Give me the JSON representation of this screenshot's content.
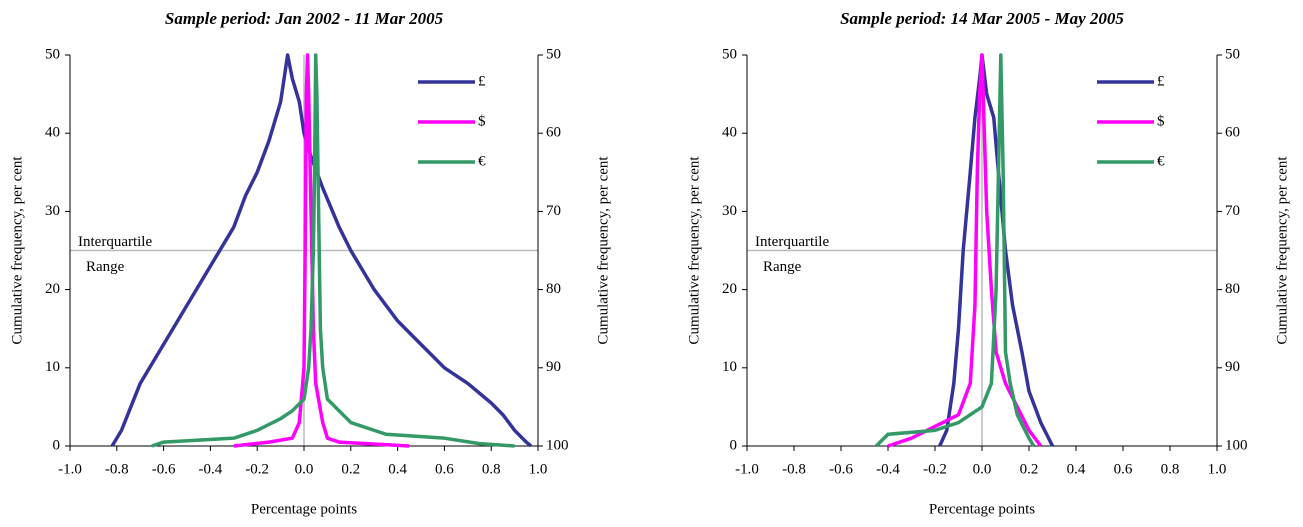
{
  "chart_data": [
    {
      "type": "line",
      "title": "Sample period: Jan 2002 - 11 Mar 2005",
      "xlabel": "Percentage points",
      "ylabel": "Cumulative frequency, per cent",
      "y2label": "Cumulative frequency, per cent",
      "xlim": [
        -1,
        1
      ],
      "xticks": [
        {
          "value": -1,
          "label": "-1.0"
        },
        -0.8,
        -0.6,
        -0.4,
        -0.2,
        {
          "value": 0,
          "label": "0.0"
        },
        0.2,
        0.4,
        0.6,
        0.8,
        {
          "value": 1,
          "label": "1.0"
        }
      ],
      "ylim": [
        0,
        50
      ],
      "yticks": [
        0,
        10,
        20,
        30,
        40,
        50
      ],
      "y2lim": [
        100,
        50
      ],
      "y2ticks": [
        100,
        90,
        80,
        70,
        60,
        50
      ],
      "hline": 25,
      "vline": 0,
      "annotation": [
        "Interquartile",
        "Range"
      ],
      "legend": "top-right",
      "series": [
        {
          "name": "£",
          "color": "#333399",
          "x": [
            -0.82,
            -0.78,
            -0.7,
            -0.6,
            -0.5,
            -0.4,
            -0.3,
            -0.25,
            -0.2,
            -0.15,
            -0.1,
            -0.08,
            -0.07,
            -0.05,
            -0.02,
            0.0,
            0.03,
            0.08,
            0.15,
            0.2,
            0.3,
            0.4,
            0.5,
            0.6,
            0.7,
            0.8,
            0.85,
            0.9,
            0.95,
            0.97
          ],
          "values": [
            0,
            2,
            8,
            13,
            18,
            23,
            28,
            32,
            35,
            39,
            44,
            48,
            50,
            47,
            44,
            40,
            37,
            33,
            28,
            25,
            20,
            16,
            13,
            10,
            8,
            5.5,
            4,
            2,
            0.5,
            0
          ]
        },
        {
          "name": "$",
          "color": "#ff00ff",
          "x": [
            -0.3,
            -0.15,
            -0.05,
            -0.02,
            0.0,
            0.005,
            0.01,
            0.015,
            0.02,
            0.03,
            0.04,
            0.05,
            0.08,
            0.1,
            0.15,
            0.45
          ],
          "values": [
            0,
            0.5,
            1,
            3,
            10,
            25,
            45,
            50,
            45,
            30,
            15,
            8,
            3,
            1,
            0.5,
            0
          ]
        },
        {
          "name": "€",
          "color": "#339966",
          "x": [
            -0.65,
            -0.6,
            -0.3,
            -0.2,
            -0.1,
            -0.05,
            0.0,
            0.02,
            0.03,
            0.04,
            0.045,
            0.05,
            0.055,
            0.06,
            0.065,
            0.07,
            0.08,
            0.1,
            0.2,
            0.35,
            0.6,
            0.75,
            0.9
          ],
          "values": [
            0,
            0.5,
            1,
            2,
            3.5,
            4.5,
            6,
            10,
            15,
            25,
            35,
            50,
            45,
            35,
            25,
            15,
            10,
            6,
            3,
            1.5,
            1,
            0.3,
            0
          ]
        }
      ]
    },
    {
      "type": "line",
      "title": "Sample period: 14 Mar 2005 - May 2005",
      "xlabel": "Percentage points",
      "ylabel": "Cumulative frequency, per cent",
      "y2label": "Cumulative frequency, per cent",
      "xlim": [
        -1,
        1
      ],
      "xticks": [
        {
          "value": -1,
          "label": "-1.0"
        },
        -0.8,
        -0.6,
        -0.4,
        -0.2,
        {
          "value": 0,
          "label": "0.0"
        },
        0.2,
        0.4,
        0.6,
        0.8,
        {
          "value": 1,
          "label": "1.0"
        }
      ],
      "ylim": [
        0,
        50
      ],
      "yticks": [
        0,
        10,
        20,
        30,
        40,
        50
      ],
      "y2lim": [
        100,
        50
      ],
      "y2ticks": [
        100,
        90,
        80,
        70,
        60,
        50
      ],
      "hline": 25,
      "vline": 0,
      "annotation": [
        "Interquartile",
        "Range"
      ],
      "legend": "top-right",
      "series": [
        {
          "name": "£",
          "color": "#333399",
          "x": [
            -0.18,
            -0.15,
            -0.12,
            -0.1,
            -0.08,
            -0.05,
            -0.03,
            -0.01,
            0.0,
            0.02,
            0.05,
            0.07,
            0.1,
            0.13,
            0.17,
            0.2,
            0.25,
            0.3
          ],
          "values": [
            0,
            2,
            8,
            15,
            25,
            35,
            42,
            47,
            50,
            45,
            42,
            35,
            25,
            18,
            12,
            7,
            3,
            0
          ]
        },
        {
          "name": "$",
          "color": "#ff00ff",
          "x": [
            -0.4,
            -0.3,
            -0.2,
            -0.1,
            -0.05,
            -0.03,
            -0.02,
            -0.01,
            0.0,
            0.01,
            0.02,
            0.04,
            0.06,
            0.1,
            0.15,
            0.2,
            0.25
          ],
          "values": [
            0,
            1,
            2.5,
            4,
            8,
            18,
            35,
            45,
            50,
            40,
            30,
            20,
            12,
            8,
            5,
            2,
            0
          ]
        },
        {
          "name": "€",
          "color": "#339966",
          "x": [
            -0.45,
            -0.4,
            -0.2,
            -0.1,
            0.0,
            0.04,
            0.06,
            0.07,
            0.08,
            0.09,
            0.1,
            0.12,
            0.15,
            0.2,
            0.22
          ],
          "values": [
            0,
            1.5,
            2,
            3,
            5,
            8,
            20,
            35,
            50,
            35,
            12,
            8,
            4,
            1,
            0
          ]
        }
      ]
    }
  ]
}
